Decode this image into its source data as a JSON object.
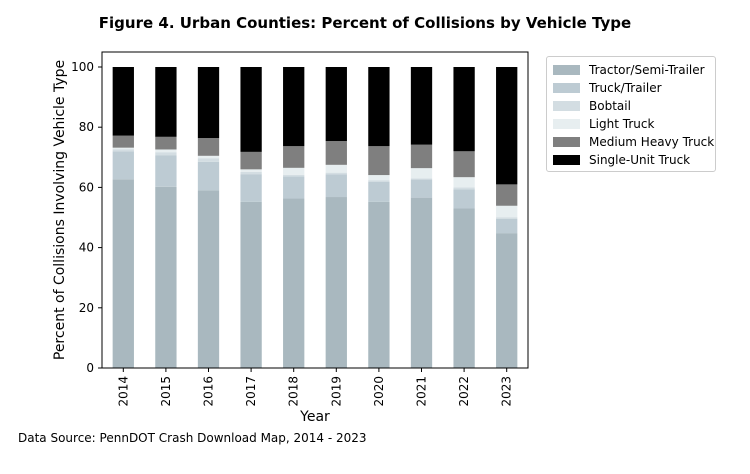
{
  "chart_data": {
    "type": "bar",
    "stacked": true,
    "title": "Figure 4. Urban Counties: Percent of Collisions by Vehicle Type",
    "xlabel": "Year",
    "ylabel": "Percent of Collisions Involving Vehicle Type",
    "ylim": [
      0,
      100
    ],
    "yticks": [
      0,
      20,
      40,
      60,
      80,
      100
    ],
    "categories": [
      "2014",
      "2015",
      "2016",
      "2017",
      "2018",
      "2019",
      "2020",
      "2021",
      "2022",
      "2023"
    ],
    "series": [
      {
        "name": "Tractor/Semi-Trailer",
        "color": "#a9b8bf",
        "values": [
          62.7,
          60.2,
          59.0,
          55.2,
          56.3,
          56.8,
          55.2,
          56.6,
          53.0,
          44.8
        ]
      },
      {
        "name": "Truck/Trailer",
        "color": "#bdcbd3",
        "values": [
          9.3,
          10.4,
          9.5,
          9.2,
          7.3,
          7.5,
          6.6,
          6.0,
          6.4,
          4.8
        ]
      },
      {
        "name": "Bobtail",
        "color": "#d3dde2",
        "values": [
          0.7,
          1.1,
          1.2,
          0.8,
          0.6,
          0.6,
          0.6,
          0.4,
          0.6,
          0.5
        ]
      },
      {
        "name": "Light Truck",
        "color": "#e7eef0",
        "values": [
          0.5,
          0.9,
          0.8,
          0.8,
          2.3,
          2.6,
          1.7,
          3.4,
          3.4,
          3.8
        ]
      },
      {
        "name": "Medium Heavy Truck",
        "color": "#7f7f7f",
        "values": [
          4.0,
          4.2,
          5.9,
          5.8,
          7.2,
          7.9,
          9.6,
          7.8,
          8.6,
          7.1
        ]
      },
      {
        "name": "Single-Unit Truck",
        "color": "#000000",
        "values": [
          22.8,
          23.2,
          23.6,
          28.2,
          26.3,
          24.6,
          26.3,
          25.8,
          28.0,
          39.0
        ]
      }
    ],
    "legend_position": "outside-right-top"
  },
  "source_note": "Data Source: PennDOT Crash Download Map, 2014 - 2023"
}
